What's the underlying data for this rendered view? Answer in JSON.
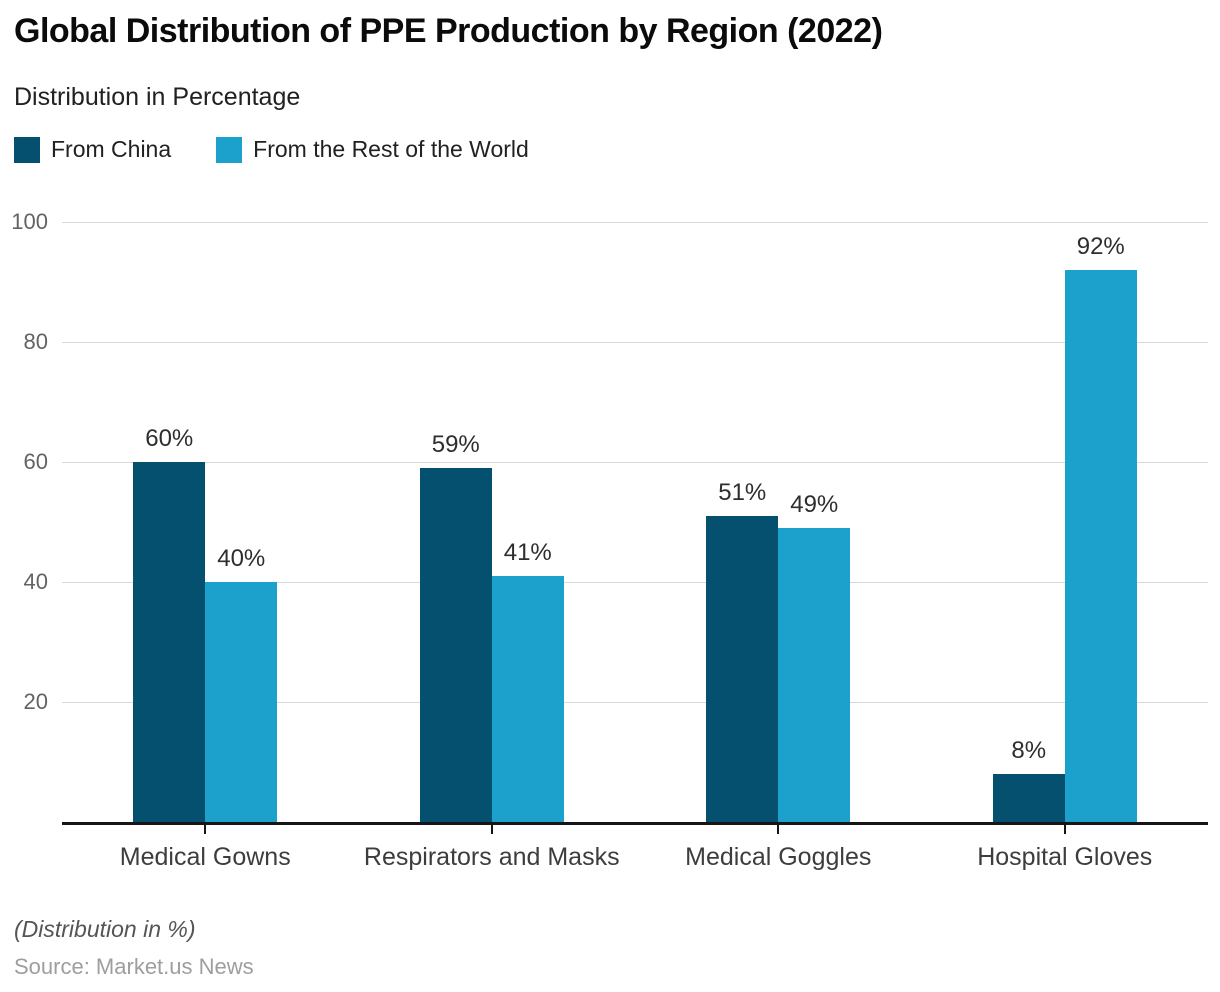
{
  "header": {
    "title": "Global Distribution of PPE Production by Region (2022)",
    "subtitle": "Distribution in Percentage"
  },
  "legend": [
    {
      "label": "From China",
      "color": "#05506F"
    },
    {
      "label": "From the Rest of the World",
      "color": "#1BA1CC"
    }
  ],
  "chart_data": {
    "type": "bar",
    "title": "Global Distribution of PPE Production by Region (2022)",
    "subtitle": "Distribution in Percentage",
    "categories": [
      "Medical Gowns",
      "Respirators and Masks",
      "Medical Goggles",
      "Hospital Gloves"
    ],
    "series": [
      {
        "name": "From China",
        "color": "#05506F",
        "values": [
          60,
          59,
          51,
          8
        ]
      },
      {
        "name": "From the Rest of the World",
        "color": "#1BA1CC",
        "values": [
          40,
          41,
          49,
          92
        ]
      }
    ],
    "data_labels": [
      [
        "60%",
        "40%"
      ],
      [
        "59%",
        "41%"
      ],
      [
        "51%",
        "49%"
      ],
      [
        "8%",
        "92%"
      ]
    ],
    "xlabel": "",
    "ylabel": "",
    "yticks": [
      20,
      40,
      60,
      80,
      100
    ],
    "ylim": [
      0,
      100
    ],
    "grid": "horizontal",
    "gridline_color": "#d9d9d9",
    "axis_line_color": "#161616",
    "legend_position": "top-left"
  },
  "footer": {
    "note": "(Distribution in %)",
    "source": "Source: Market.us News"
  }
}
